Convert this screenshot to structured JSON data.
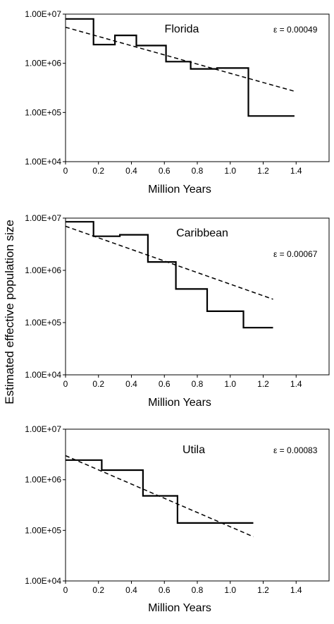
{
  "ylabel": "Estimated effective population size",
  "chart_data": [
    {
      "type": "line",
      "title": "Florida",
      "epsilon_label": "ε = 0.00049",
      "xlabel": "Million Years",
      "ylabel": "Estimated effective population size",
      "xlim": [
        0,
        1.6
      ],
      "ylim": [
        10000,
        10000000
      ],
      "yscale": "log",
      "xticks": [
        "0",
        "0.2",
        "0.4",
        "0.6",
        "0.8",
        "1.0",
        "1.2",
        "1.4"
      ],
      "yticks": [
        "1.00E+04",
        "1.00E+05",
        "1.00E+06",
        "1.00E+07"
      ],
      "grid": false,
      "series": [
        {
          "style": "step-solid",
          "x": [
            0,
            0.17,
            0.17,
            0.3,
            0.3,
            0.43,
            0.43,
            0.61,
            0.61,
            0.76,
            0.76,
            0.92,
            0.92,
            1.11,
            1.11,
            1.39
          ],
          "y": [
            8000000,
            8000000,
            2400000,
            2400000,
            3700000,
            3700000,
            2300000,
            2300000,
            1080000,
            1080000,
            770000,
            770000,
            800000,
            800000,
            85000,
            85000
          ]
        },
        {
          "style": "dashed",
          "x": [
            0,
            1.39
          ],
          "y": [
            5400000,
            270000
          ]
        }
      ]
    },
    {
      "type": "line",
      "title": "Caribbean",
      "epsilon_label": "ε = 0.00067",
      "xlabel": "Million Years",
      "ylabel": "Estimated effective population size",
      "xlim": [
        0,
        1.6
      ],
      "ylim": [
        10000,
        10000000
      ],
      "yscale": "log",
      "xticks": [
        "0",
        "0.2",
        "0.4",
        "0.6",
        "0.8",
        "1.0",
        "1.2",
        "1.4"
      ],
      "yticks": [
        "1.00E+04",
        "1.00E+05",
        "1.00E+06",
        "1.00E+07"
      ],
      "grid": false,
      "series": [
        {
          "style": "step-solid",
          "x": [
            0,
            0.17,
            0.17,
            0.33,
            0.33,
            0.5,
            0.5,
            0.67,
            0.67,
            0.86,
            0.86,
            1.08,
            1.08,
            1.26
          ],
          "y": [
            8500000,
            8500000,
            4500000,
            4500000,
            4800000,
            4800000,
            1450000,
            1450000,
            440000,
            440000,
            165000,
            165000,
            80000,
            80000
          ]
        },
        {
          "style": "dashed",
          "x": [
            0,
            1.26
          ],
          "y": [
            7000000,
            280000
          ]
        }
      ]
    },
    {
      "type": "line",
      "title": "Utila",
      "epsilon_label": "ε = 0.00083",
      "xlabel": "Million Years",
      "ylabel": "Estimated effective population size",
      "xlim": [
        0,
        1.6
      ],
      "ylim": [
        10000,
        10000000
      ],
      "yscale": "log",
      "xticks": [
        "0",
        "0.2",
        "0.4",
        "0.6",
        "0.8",
        "1.0",
        "1.2",
        "1.4"
      ],
      "yticks": [
        "1.00E+04",
        "1.00E+05",
        "1.00E+06",
        "1.00E+07"
      ],
      "grid": false,
      "series": [
        {
          "style": "step-solid",
          "x": [
            0,
            0.22,
            0.22,
            0.47,
            0.47,
            0.68,
            0.68,
            1.14
          ],
          "y": [
            2450000,
            2450000,
            1550000,
            1550000,
            480000,
            480000,
            140000,
            140000
          ]
        },
        {
          "style": "dashed",
          "x": [
            0,
            1.14
          ],
          "y": [
            3000000,
            75000
          ]
        }
      ]
    }
  ]
}
